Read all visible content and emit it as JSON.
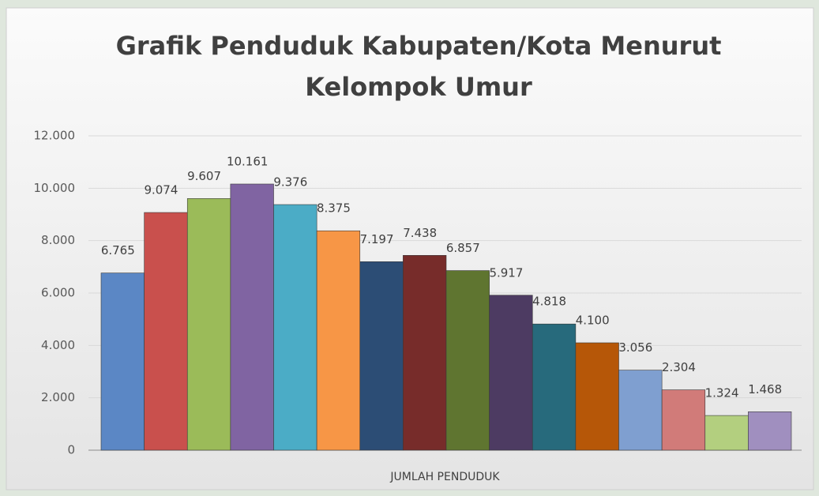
{
  "chart_data": {
    "type": "bar",
    "title": [
      "Grafik Penduduk Kabupaten/Kota Menurut",
      "Kelompok Umur"
    ],
    "categories": [
      "JUMLAH PENDUDUK"
    ],
    "series": [
      {
        "color": "#5b87c5",
        "values": [
          6765
        ],
        "value_labels": [
          "6.765"
        ]
      },
      {
        "color": "#c9504d",
        "values": [
          9074
        ],
        "value_labels": [
          "9.074"
        ]
      },
      {
        "color": "#9bbb59",
        "values": [
          9607
        ],
        "value_labels": [
          "9.607"
        ]
      },
      {
        "color": "#8064a2",
        "values": [
          10161
        ],
        "value_labels": [
          "10.161"
        ]
      },
      {
        "color": "#4bacc6",
        "values": [
          9376
        ],
        "value_labels": [
          "9.376"
        ]
      },
      {
        "color": "#f79646",
        "values": [
          8375
        ],
        "value_labels": [
          "8.375"
        ]
      },
      {
        "color": "#2c4d75",
        "values": [
          7197
        ],
        "value_labels": [
          "7.197"
        ]
      },
      {
        "color": "#772c2a",
        "values": [
          7438
        ],
        "value_labels": [
          "7.438"
        ]
      },
      {
        "color": "#5f7530",
        "values": [
          6857
        ],
        "value_labels": [
          "6.857"
        ]
      },
      {
        "color": "#4d3b62",
        "values": [
          5917
        ],
        "value_labels": [
          "5.917"
        ]
      },
      {
        "color": "#276a7c",
        "values": [
          4818
        ],
        "value_labels": [
          "4.818"
        ]
      },
      {
        "color": "#b65708",
        "values": [
          4100
        ],
        "value_labels": [
          "4.100"
        ]
      },
      {
        "color": "#7f9fd0",
        "values": [
          3056
        ],
        "value_labels": [
          "3.056"
        ]
      },
      {
        "color": "#d17b79",
        "values": [
          2304
        ],
        "value_labels": [
          "2.304"
        ]
      },
      {
        "color": "#b3cf7f",
        "values": [
          1324
        ],
        "value_labels": [
          "1.324"
        ]
      },
      {
        "color": "#a08fbf",
        "values": [
          1468
        ],
        "value_labels": [
          "1.468"
        ]
      }
    ],
    "ylim": [
      0,
      12000
    ],
    "yticks": [
      0,
      {
        "value": 2000,
        "label": "2.000"
      },
      {
        "value": 4000,
        "label": "4.000"
      },
      {
        "value": 6000,
        "label": "6.000"
      },
      {
        "value": 8000,
        "label": "8.000"
      },
      {
        "value": 10000,
        "label": "10.000"
      },
      {
        "value": 12000,
        "label": "12.000"
      }
    ],
    "grid": true
  }
}
